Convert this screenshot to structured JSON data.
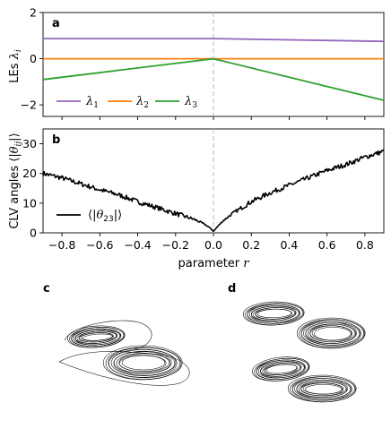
{
  "chart_data": [
    {
      "panel": "a",
      "type": "line",
      "ylabel": "LEs λ_i",
      "xlim": [
        -0.9,
        0.9
      ],
      "ylim": [
        -2.5,
        2
      ],
      "yticks": [
        "-2",
        "0",
        "2"
      ],
      "xticks": [
        "-0.8",
        "-0.6",
        "-0.4",
        "-0.2",
        "0.0",
        "0.2",
        "0.4",
        "0.6",
        "0.8"
      ],
      "series": [
        {
          "name": "λ1",
          "color": "#9467bd",
          "x": [
            -0.9,
            0.0,
            0.9
          ],
          "y": [
            0.87,
            0.87,
            0.75
          ]
        },
        {
          "name": "λ2",
          "color": "#ff7f0e",
          "x": [
            -0.9,
            0.0,
            0.9
          ],
          "y": [
            0.0,
            0.0,
            0.0
          ]
        },
        {
          "name": "λ3",
          "color": "#2ca02c",
          "x": [
            -0.9,
            0.0,
            0.9
          ],
          "y": [
            -0.9,
            0.0,
            -1.8
          ]
        }
      ],
      "legend": "lower-left",
      "vline": {
        "x": 0.0,
        "style": "dashed",
        "color": "#c8c8c8"
      }
    },
    {
      "panel": "b",
      "type": "line",
      "ylabel": "CLV angles ⟨|θ_ij|⟩",
      "xlabel": "parameter r",
      "xlim": [
        -0.9,
        0.9
      ],
      "ylim": [
        0,
        35
      ],
      "yticks": [
        "0",
        "10",
        "20",
        "30"
      ],
      "xticks": [
        "-0.8",
        "-0.6",
        "-0.4",
        "-0.2",
        "0.0",
        "0.2",
        "0.4",
        "0.6",
        "0.8"
      ],
      "series": [
        {
          "name": "⟨|θ23|⟩",
          "color": "#000000",
          "x": [
            -0.9,
            -0.8,
            -0.7,
            -0.6,
            -0.5,
            -0.4,
            -0.3,
            -0.2,
            -0.1,
            -0.05,
            -0.02,
            0.0,
            0.02,
            0.05,
            0.1,
            0.2,
            0.3,
            0.4,
            0.5,
            0.6,
            0.7,
            0.8,
            0.9
          ],
          "y": [
            20,
            18.5,
            16.5,
            14.5,
            12.8,
            10.5,
            8.5,
            6.5,
            4.5,
            3.0,
            1.8,
            0.5,
            2.0,
            4.0,
            6.5,
            10.5,
            13.5,
            16.0,
            18.5,
            21.0,
            23.0,
            25.5,
            27.5
          ]
        }
      ],
      "legend": "lower-left",
      "vline": {
        "x": 0.0,
        "style": "dashed",
        "color": "#c8c8c8"
      }
    }
  ],
  "panels": {
    "a": "a",
    "b": "b",
    "c": "c",
    "d": "d"
  }
}
